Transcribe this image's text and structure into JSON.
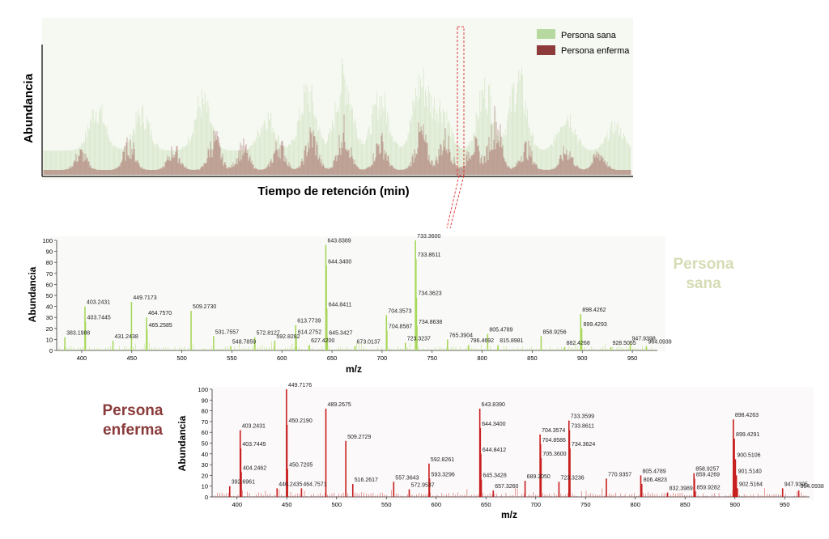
{
  "colors": {
    "healthy": "#a8d75a",
    "healthy_fill": "#b7d9a0",
    "sick": "#8e3b3b",
    "sick_spec": "#c81e1e",
    "sana_label": "#d5dcb4",
    "enferma_label": "#8b3a3a",
    "guide": "#e04040"
  },
  "chromatogram": {
    "ylabel": "Abundancia",
    "xlabel": "Tiempo de retención (min)",
    "legend": [
      {
        "label": "Persona sana",
        "color": "#b7d9a0"
      },
      {
        "label": "Persona enferma",
        "color": "#8e3b3b"
      }
    ]
  },
  "chart_data": [
    {
      "type": "bar",
      "title": "",
      "series_label": [
        "Persona",
        "sana"
      ],
      "ylabel": "Abundancia",
      "xlabel": "m/z",
      "xlim": [
        375,
        975
      ],
      "ylim": [
        0,
        100
      ],
      "xticks": [
        400,
        450,
        500,
        550,
        600,
        650,
        700,
        750,
        800,
        850,
        900,
        950
      ],
      "yticks": [
        0,
        10,
        20,
        30,
        40,
        50,
        60,
        70,
        80,
        90,
        100
      ],
      "peaks": [
        {
          "x": 383.1988,
          "y": 12,
          "label": "383.1988"
        },
        {
          "x": 403.2431,
          "y": 40,
          "label": "403.2431"
        },
        {
          "x": 403.7445,
          "y": 26,
          "label": "403.7445"
        },
        {
          "x": 431.2438,
          "y": 9,
          "label": "431.2438"
        },
        {
          "x": 449.7173,
          "y": 44,
          "label": "449.7173"
        },
        {
          "x": 464.757,
          "y": 30,
          "label": "464.7570"
        },
        {
          "x": 465.2585,
          "y": 19,
          "label": "465.2585"
        },
        {
          "x": 509.273,
          "y": 36,
          "label": "509.2730"
        },
        {
          "x": 531.7557,
          "y": 13,
          "label": "531.7557"
        },
        {
          "x": 548.7859,
          "y": 4,
          "label": "548.7859"
        },
        {
          "x": 572.8127,
          "y": 12,
          "label": "572.8127"
        },
        {
          "x": 592.8282,
          "y": 9,
          "label": "592.8282"
        },
        {
          "x": 613.7739,
          "y": 23,
          "label": "613.7739"
        },
        {
          "x": 614.2752,
          "y": 13,
          "label": "614.2752"
        },
        {
          "x": 627.42,
          "y": 5,
          "label": "627.4200"
        },
        {
          "x": 643.8389,
          "y": 96,
          "label": "643.8389"
        },
        {
          "x": 644.34,
          "y": 77,
          "label": "644.3400"
        },
        {
          "x": 644.8411,
          "y": 38,
          "label": "644.8411"
        },
        {
          "x": 645.3427,
          "y": 12,
          "label": "645.3427"
        },
        {
          "x": 673.0137,
          "y": 4,
          "label": "673.0137"
        },
        {
          "x": 704.3573,
          "y": 32,
          "label": "704.3573"
        },
        {
          "x": 704.8587,
          "y": 18,
          "label": "704.8587"
        },
        {
          "x": 723.3237,
          "y": 7,
          "label": "723.3237"
        },
        {
          "x": 733.36,
          "y": 100,
          "label": "733.3600"
        },
        {
          "x": 733.8611,
          "y": 83,
          "label": "733.8611"
        },
        {
          "x": 734.3623,
          "y": 48,
          "label": "734.3623"
        },
        {
          "x": 734.8638,
          "y": 22,
          "label": "734.8638"
        },
        {
          "x": 765.3904,
          "y": 10,
          "label": "765.3904"
        },
        {
          "x": 786.4692,
          "y": 5,
          "label": "786.4692"
        },
        {
          "x": 805.4789,
          "y": 15,
          "label": "805.4789"
        },
        {
          "x": 815.8981,
          "y": 5,
          "label": "815.8981"
        },
        {
          "x": 858.9256,
          "y": 13,
          "label": "858.9256"
        },
        {
          "x": 882.4268,
          "y": 3,
          "label": "882.4268"
        },
        {
          "x": 898.4262,
          "y": 33,
          "label": "898.4262"
        },
        {
          "x": 899.4293,
          "y": 20,
          "label": "899.4293"
        },
        {
          "x": 928.5055,
          "y": 3,
          "label": "928.5055"
        },
        {
          "x": 947.9398,
          "y": 7,
          "label": "947.9398"
        },
        {
          "x": 964.0939,
          "y": 4,
          "label": "964.0939"
        }
      ]
    },
    {
      "type": "bar",
      "title": "",
      "series_label": [
        "Persona",
        "enferma"
      ],
      "ylabel": "Abundancia",
      "xlabel": "m/z",
      "xlim": [
        375,
        975
      ],
      "ylim": [
        0,
        100
      ],
      "xticks": [
        400,
        450,
        500,
        550,
        600,
        650,
        700,
        750,
        800,
        850,
        900,
        950
      ],
      "yticks": [
        0,
        10,
        20,
        30,
        40,
        50,
        60,
        70,
        80,
        90,
        100
      ],
      "peaks": [
        {
          "x": 392.6961,
          "y": 10,
          "label": "392.6961"
        },
        {
          "x": 403.2431,
          "y": 62,
          "label": "403.2431"
        },
        {
          "x": 403.7445,
          "y": 45,
          "label": "403.7445"
        },
        {
          "x": 404.2462,
          "y": 23,
          "label": "404.2462"
        },
        {
          "x": 440.2435,
          "y": 8,
          "label": "440.2435"
        },
        {
          "x": 449.7176,
          "y": 100,
          "label": "449.7176"
        },
        {
          "x": 450.219,
          "y": 67,
          "label": "450.2190"
        },
        {
          "x": 450.7205,
          "y": 26,
          "label": "450.7205"
        },
        {
          "x": 464.7571,
          "y": 8,
          "label": "464.7571"
        },
        {
          "x": 489.2675,
          "y": 82,
          "label": "489.2675"
        },
        {
          "x": 509.2729,
          "y": 52,
          "label": "509.2729"
        },
        {
          "x": 516.2617,
          "y": 12,
          "label": "516.2617"
        },
        {
          "x": 557.3643,
          "y": 14,
          "label": "557.3643"
        },
        {
          "x": 572.9537,
          "y": 7,
          "label": "572.9537"
        },
        {
          "x": 592.8261,
          "y": 31,
          "label": "592.8261"
        },
        {
          "x": 593.3296,
          "y": 17,
          "label": "593.3296"
        },
        {
          "x": 643.839,
          "y": 82,
          "label": "643.8390"
        },
        {
          "x": 644.34,
          "y": 64,
          "label": "644.3400"
        },
        {
          "x": 644.8412,
          "y": 40,
          "label": "644.8412"
        },
        {
          "x": 645.3428,
          "y": 16,
          "label": "645.3428"
        },
        {
          "x": 657.326,
          "y": 6,
          "label": "657.3260"
        },
        {
          "x": 689.305,
          "y": 15,
          "label": "689.3050"
        },
        {
          "x": 704.3574,
          "y": 58,
          "label": "704.3574"
        },
        {
          "x": 704.8586,
          "y": 49,
          "label": "704.8586"
        },
        {
          "x": 705.36,
          "y": 36,
          "label": "705.3600"
        },
        {
          "x": 723.3236,
          "y": 14,
          "label": "723.3236"
        },
        {
          "x": 733.3599,
          "y": 71,
          "label": "733.3599"
        },
        {
          "x": 733.8611,
          "y": 62,
          "label": "733.8611"
        },
        {
          "x": 734.3624,
          "y": 45,
          "label": "734.3624"
        },
        {
          "x": 770.9357,
          "y": 17,
          "label": "770.9357"
        },
        {
          "x": 805.4789,
          "y": 20,
          "label": "805.4789"
        },
        {
          "x": 806.4823,
          "y": 12,
          "label": "806.4823"
        },
        {
          "x": 832.3989,
          "y": 4,
          "label": "832.3989"
        },
        {
          "x": 858.9257,
          "y": 22,
          "label": "858.9257"
        },
        {
          "x": 859.4269,
          "y": 17,
          "label": "859.4269"
        },
        {
          "x": 859.9282,
          "y": 5,
          "label": "859.9282"
        },
        {
          "x": 898.4263,
          "y": 72,
          "label": "898.4263"
        },
        {
          "x": 899.4291,
          "y": 54,
          "label": "899.4291"
        },
        {
          "x": 900.5106,
          "y": 35,
          "label": "900.5106"
        },
        {
          "x": 901.514,
          "y": 20,
          "label": "901.5140"
        },
        {
          "x": 902.5164,
          "y": 8,
          "label": "902.5164"
        },
        {
          "x": 947.9395,
          "y": 8,
          "label": "947.9395"
        },
        {
          "x": 964.0938,
          "y": 6,
          "label": "964.0938"
        }
      ]
    }
  ]
}
